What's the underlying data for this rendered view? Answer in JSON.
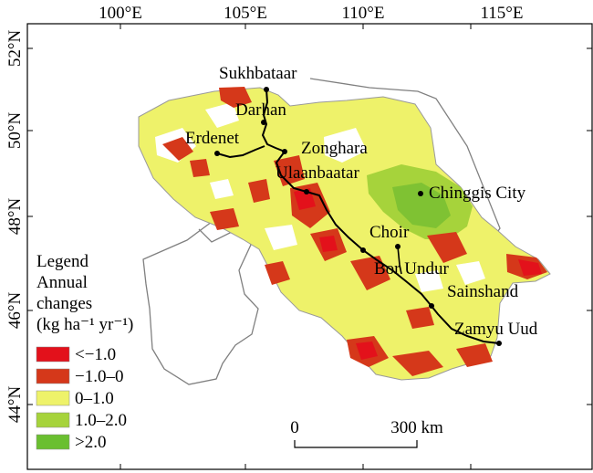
{
  "map": {
    "lon_ticks": [
      "100°E",
      "105°E",
      "110°E",
      "115°E"
    ],
    "lat_ticks": [
      "52°N",
      "50°N",
      "48°N",
      "46°N",
      "44°N"
    ],
    "cities": [
      {
        "name": "Sukhbataar"
      },
      {
        "name": "Darhan"
      },
      {
        "name": "Erdenet"
      },
      {
        "name": "Zonghara"
      },
      {
        "name": "Ulaanbaatar"
      },
      {
        "name": "Chinggis City"
      },
      {
        "name": "Choir"
      },
      {
        "name": "Bor Undur"
      },
      {
        "name": "Sainshand"
      },
      {
        "name": "Zamyu Uud"
      }
    ],
    "legend": {
      "title_1": "Legend",
      "title_2": "Annual",
      "title_3": "changes",
      "title_4": "(kg ha⁻¹ yr⁻¹)",
      "classes": [
        {
          "label": "<−1.0",
          "color": "#e3111b"
        },
        {
          "label": "−1.0–0",
          "color": "#d5381a"
        },
        {
          "label": "0–1.0",
          "color": "#eef26a"
        },
        {
          "label": "1.0–2.0",
          "color": "#a6d33b"
        },
        {
          "label": ">2.0",
          "color": "#6abf30"
        }
      ]
    },
    "scale_bar": {
      "start": "0",
      "end": "300 km"
    }
  }
}
